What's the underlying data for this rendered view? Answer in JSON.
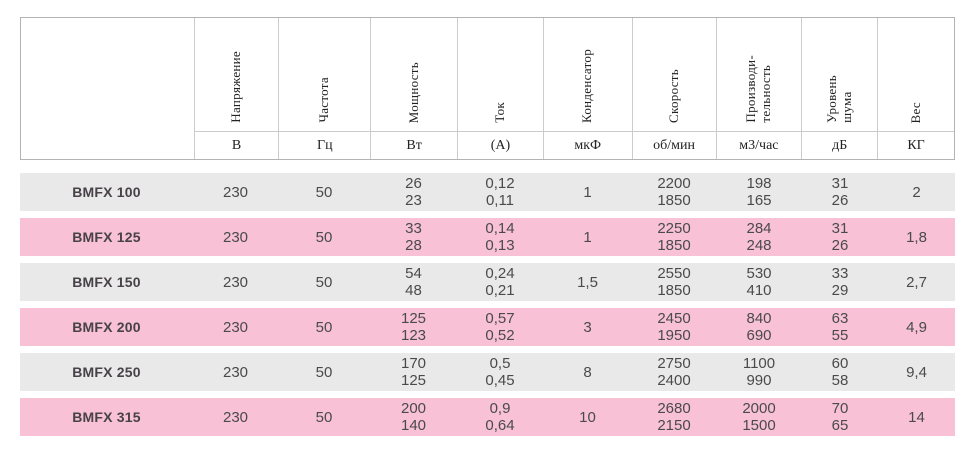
{
  "table": {
    "columns": [
      {
        "label": "",
        "unit": ""
      },
      {
        "label": "Напряжение",
        "unit": "В"
      },
      {
        "label": "Частота",
        "unit": "Гц"
      },
      {
        "label": "Мощность",
        "unit": "Вт"
      },
      {
        "label": "Ток",
        "unit": "(А)"
      },
      {
        "label": "Конденсатор",
        "unit": "мкФ"
      },
      {
        "label": "Скорость",
        "unit": "об/мин"
      },
      {
        "label": "Производи-\nтельность",
        "unit": "м3/час"
      },
      {
        "label": "Уровень\nшума",
        "unit": "дБ"
      },
      {
        "label": "Вес",
        "unit": "КГ"
      }
    ],
    "rows": [
      {
        "model": "BMFX 100",
        "values": [
          "230",
          "50",
          "26\n23",
          "0,12\n0,11",
          "1",
          "2200\n1850",
          "198\n165",
          "31\n26",
          "2"
        ]
      },
      {
        "model": "BMFX 125",
        "values": [
          "230",
          "50",
          "33\n28",
          "0,14\n0,13",
          "1",
          "2250\n1850",
          "284\n248",
          "31\n26",
          "1,8"
        ]
      },
      {
        "model": "BMFX 150",
        "values": [
          "230",
          "50",
          "54\n48",
          "0,24\n0,21",
          "1,5",
          "2550\n1850",
          "530\n410",
          "33\n29",
          "2,7"
        ]
      },
      {
        "model": "BMFX 200",
        "values": [
          "230",
          "50",
          "125\n123",
          "0,57\n0,52",
          "3",
          "2450\n1950",
          "840\n690",
          "63\n55",
          "4,9"
        ]
      },
      {
        "model": "BMFX 250",
        "values": [
          "230",
          "50",
          "170\n125",
          "0,5\n0,45",
          "8",
          "2750\n2400",
          "1100\n990",
          "60\n58",
          "9,4"
        ]
      },
      {
        "model": "BMFX 315",
        "values": [
          "230",
          "50",
          "200\n140",
          "0,9\n0,64",
          "10",
          "2680\n2150",
          "2000\n1500",
          "70\n65",
          "14"
        ]
      }
    ]
  },
  "colors": {
    "row_gray": "#e9e9e9",
    "row_pink": "#f8c1d6",
    "border": "#b3b3b3",
    "header_text": "#222222",
    "data_text": "#4a4a4a"
  }
}
